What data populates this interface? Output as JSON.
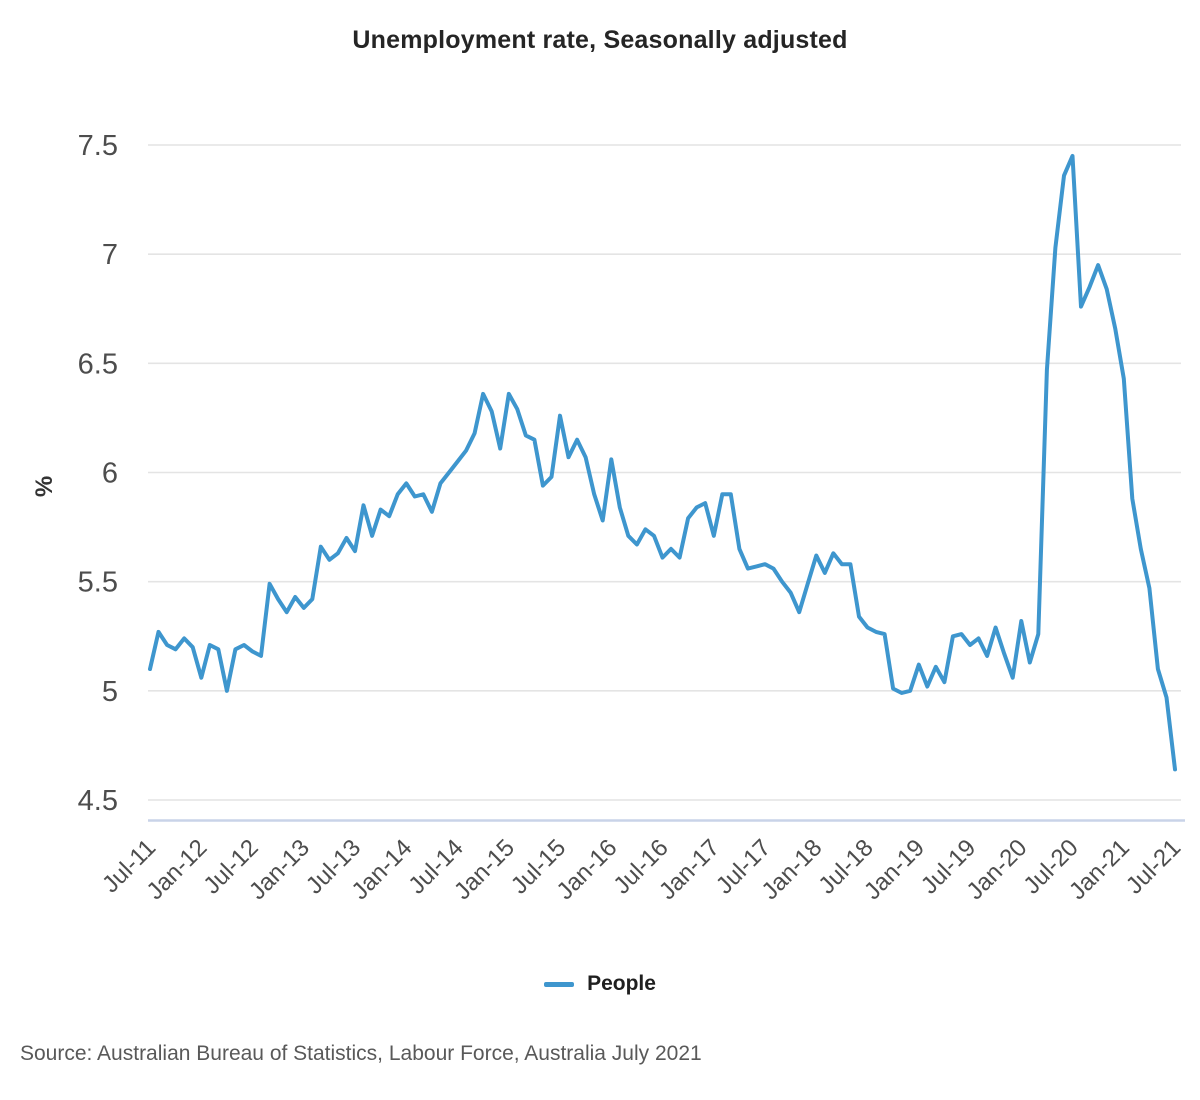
{
  "title": "Unemployment rate, Seasonally adjusted",
  "legend": {
    "label": "People"
  },
  "source": "Source: Australian Bureau of Statistics, Labour Force, Australia July 2021",
  "colors": {
    "line": "#3e96ce",
    "grid": "#e4e4e4",
    "baseline": "#c9d3e8",
    "tick_text": "#4d4d4d",
    "axis_title_text": "#333333"
  },
  "chart_data": {
    "type": "line",
    "title": "Unemployment rate, Seasonally adjusted",
    "xlabel": "",
    "ylabel": "%",
    "frequency": "monthly",
    "x_start": "Jul-2011",
    "x_end": "Jul-2021",
    "x_tick_labels": [
      "Jul-11",
      "Jan-12",
      "Jul-12",
      "Jan-13",
      "Jul-13",
      "Jan-14",
      "Jul-14",
      "Jan-15",
      "Jul-15",
      "Jan-16",
      "Jul-16",
      "Jan-17",
      "Jul-17",
      "Jan-18",
      "Jul-18",
      "Jan-19",
      "Jul-19",
      "Jan-20",
      "Jul-20",
      "Jan-21",
      "Jul-21"
    ],
    "x_tick_every": 6,
    "y_ticks": [
      4.5,
      5,
      5.5,
      6,
      6.5,
      7,
      7.5
    ],
    "ylim": [
      4.5,
      7.5
    ],
    "grid": "horizontal",
    "legend_position": "bottom",
    "series": [
      {
        "name": "People",
        "color": "#3e96ce",
        "values": [
          5.1,
          5.27,
          5.21,
          5.19,
          5.24,
          5.2,
          5.06,
          5.21,
          5.19,
          5.0,
          5.19,
          5.21,
          5.18,
          5.16,
          5.49,
          5.42,
          5.36,
          5.43,
          5.38,
          5.42,
          5.66,
          5.6,
          5.63,
          5.7,
          5.64,
          5.85,
          5.71,
          5.83,
          5.8,
          5.9,
          5.95,
          5.89,
          5.9,
          5.82,
          5.95,
          6.0,
          6.05,
          6.1,
          6.18,
          6.36,
          6.28,
          6.11,
          6.36,
          6.29,
          6.17,
          6.15,
          5.94,
          5.98,
          6.26,
          6.07,
          6.15,
          6.07,
          5.9,
          5.78,
          6.06,
          5.84,
          5.71,
          5.67,
          5.74,
          5.71,
          5.61,
          5.65,
          5.61,
          5.79,
          5.84,
          5.86,
          5.71,
          5.9,
          5.9,
          5.65,
          5.56,
          5.57,
          5.58,
          5.56,
          5.5,
          5.45,
          5.36,
          5.49,
          5.62,
          5.54,
          5.63,
          5.58,
          5.58,
          5.34,
          5.29,
          5.27,
          5.26,
          5.01,
          4.99,
          5.0,
          5.12,
          5.02,
          5.11,
          5.04,
          5.25,
          5.26,
          5.21,
          5.24,
          5.16,
          5.29,
          5.17,
          5.06,
          5.32,
          5.13,
          5.26,
          6.47,
          7.03,
          7.36,
          7.45,
          6.76,
          6.85,
          6.95,
          6.84,
          6.66,
          6.43,
          5.88,
          5.65,
          5.47,
          5.1,
          4.97,
          4.64
        ]
      }
    ]
  },
  "layout_note": ""
}
